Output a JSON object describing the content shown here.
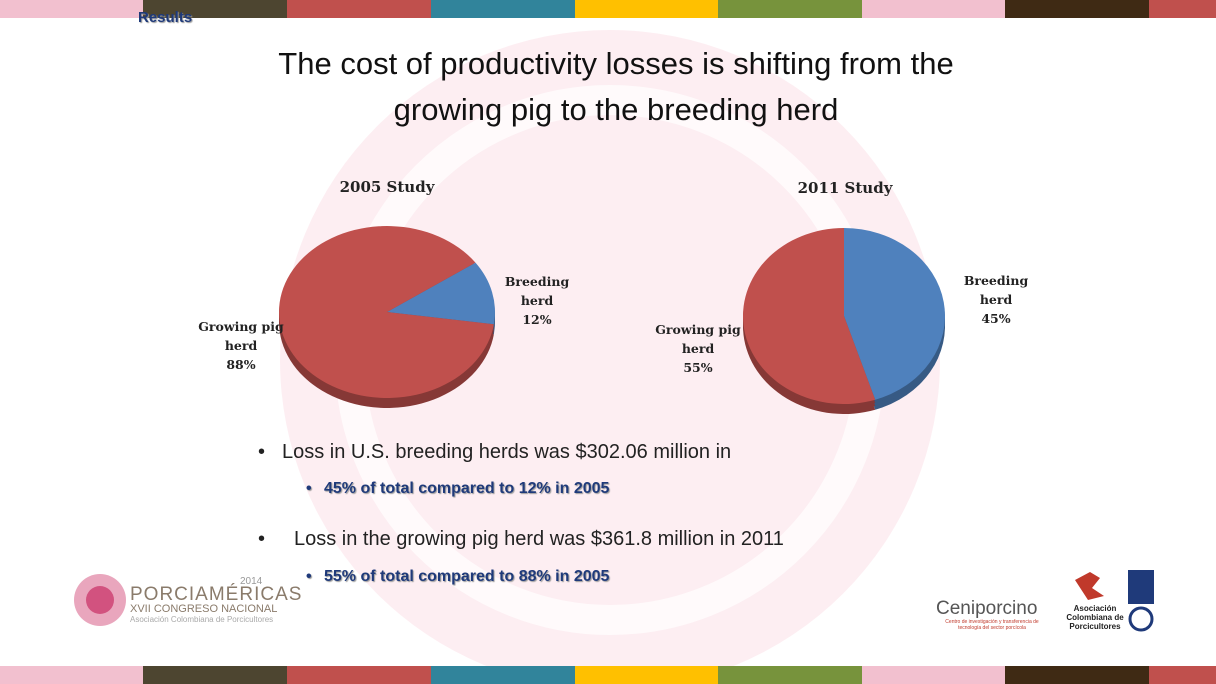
{
  "header": "Results",
  "title": [
    "The cost of productivity losses is shifting from the",
    "growing pig to the breeding herd"
  ],
  "chart_data": [
    {
      "type": "pie",
      "title": "2005 Study",
      "categories": [
        "Breeding herd",
        "Growing pig herd"
      ],
      "values": [
        12,
        88
      ],
      "value_labels": [
        "12%",
        "88%"
      ],
      "colors": [
        "#4f81bd",
        "#c0504d"
      ]
    },
    {
      "type": "pie",
      "title": "2011 Study",
      "categories": [
        "Breeding herd",
        "Growing pig herd"
      ],
      "values": [
        45,
        55
      ],
      "value_labels": [
        "45%",
        "55%"
      ],
      "colors": [
        "#4f81bd",
        "#c0504d"
      ]
    }
  ],
  "bullets": [
    {
      "text": "Loss in U.S. breeding herds was $302.06 million in",
      "sub": "45% of total compared to 12% in 2005"
    },
    {
      "text": "Loss in the growing pig herd was $361.8 million in 2011",
      "sub": "55% of total compared to 88% in 2005"
    }
  ],
  "logos": {
    "porciamericas": "PORCIAMÉRICAS",
    "year": "2014",
    "congress": "XVII CONGRESO NACIONAL",
    "association": "Asociación Colombiana de Porcicultores",
    "ceniporcino": "Ceniporcino",
    "ceni_sub": "Centro de investigación y transferencia de tecnología del sector porcícola",
    "asoc": "Asociación Colombiana de Porcicultores"
  }
}
